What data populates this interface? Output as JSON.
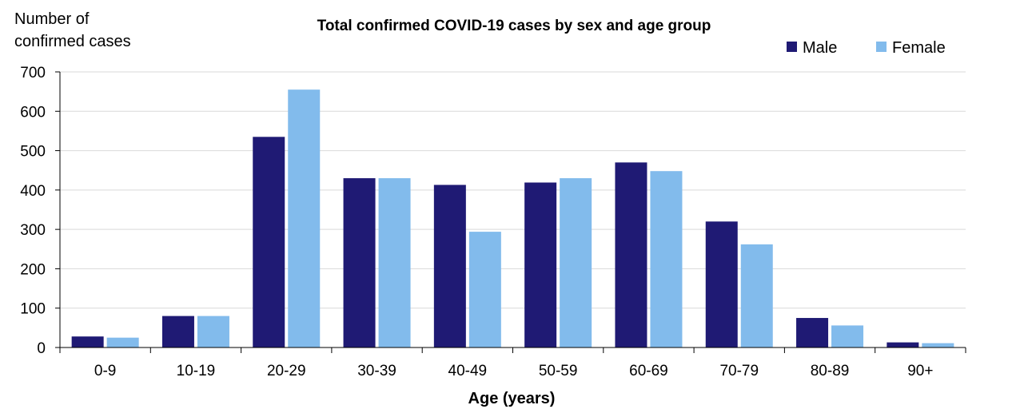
{
  "chart_data": {
    "type": "bar",
    "title": "Total confirmed COVID-19 cases by sex and age group",
    "ylabel_lines": [
      "Number of",
      "confirmed cases"
    ],
    "xlabel": "Age (years)",
    "categories": [
      "0-9",
      "10-19",
      "20-29",
      "30-39",
      "40-49",
      "50-59",
      "60-69",
      "70-79",
      "80-89",
      "90+"
    ],
    "series": [
      {
        "name": "Male",
        "color": "#1f1a74",
        "values": [
          28,
          80,
          535,
          430,
          413,
          419,
          470,
          320,
          75,
          13
        ]
      },
      {
        "name": "Female",
        "color": "#82bbec",
        "values": [
          25,
          80,
          655,
          430,
          294,
          430,
          448,
          262,
          56,
          11
        ]
      }
    ],
    "ylim": [
      0,
      700
    ],
    "yticks": [
      0,
      100,
      200,
      300,
      400,
      500,
      600,
      700
    ],
    "grid": true,
    "legend_position": "top-right"
  }
}
